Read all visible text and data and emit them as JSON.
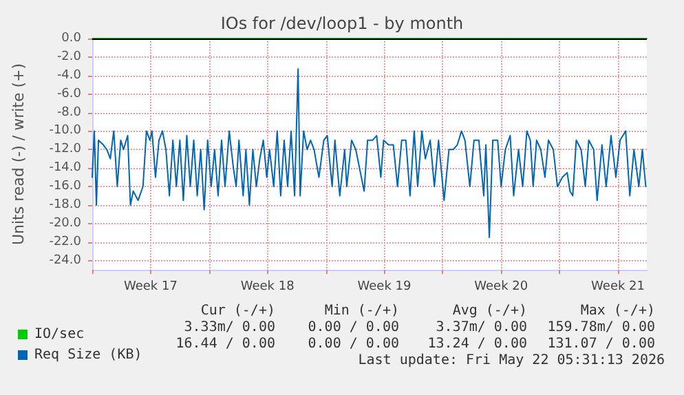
{
  "chart_data": {
    "type": "line",
    "title": "IOs for /dev/loop1 - by month",
    "ylabel": "Units read (-) / write (+)",
    "xlim": [
      "2026-04-19T00:00",
      "2026-05-22T05:31"
    ],
    "xticks": [
      {
        "value": "2026-04-19",
        "label": null
      },
      {
        "value": "2026-04-22T12:00",
        "label": "Week 17"
      },
      {
        "value": "2026-04-26",
        "label": null
      },
      {
        "value": "2026-04-29T12:00",
        "label": "Week 18"
      },
      {
        "value": "2026-05-03",
        "label": null
      },
      {
        "value": "2026-05-06T12:00",
        "label": "Week 19"
      },
      {
        "value": "2026-05-10",
        "label": null
      },
      {
        "value": "2026-05-13T12:00",
        "label": "Week 20"
      },
      {
        "value": "2026-05-17",
        "label": null
      },
      {
        "value": "2026-05-20T12:00",
        "label": "Week 21"
      }
    ],
    "ylim": [
      -25,
      0
    ],
    "yticks": [
      {
        "value": 0,
        "label": "0.0"
      },
      {
        "value": -2,
        "label": "-2.0"
      },
      {
        "value": -4,
        "label": "-4.0"
      },
      {
        "value": -6,
        "label": "-6.0"
      },
      {
        "value": -8,
        "label": "-8.0"
      },
      {
        "value": -10,
        "label": "-10.0"
      },
      {
        "value": -12,
        "label": "-12.0"
      },
      {
        "value": -14,
        "label": "-14.0"
      },
      {
        "value": -16,
        "label": "-16.0"
      },
      {
        "value": -18,
        "label": "-18.0"
      },
      {
        "value": -20,
        "label": "-20.0"
      },
      {
        "value": -22,
        "label": "-22.0"
      },
      {
        "value": -24,
        "label": "-24.0"
      }
    ],
    "grid": true,
    "legend": "bottom left",
    "marker": "none",
    "line_style": "solid",
    "ref_lines": [
      {
        "axis": "y",
        "value": 0,
        "label": null,
        "color": "#000000"
      }
    ],
    "series": [
      {
        "name": "IO/sec",
        "color": "#00cc00",
        "x": [
          "2026-04-19T00:00",
          "2026-05-22T05:31"
        ],
        "values": [
          0,
          0
        ]
      },
      {
        "name": "Req Size (KB)",
        "color": "#0066b3",
        "x": [
          "2026-04-19T00:00",
          "2026-04-19T03:00",
          "2026-04-19T06:00",
          "2026-04-19T09:00",
          "2026-04-19T16:00",
          "2026-04-19T21:00",
          "2026-04-20T02:00",
          "2026-04-20T07:00",
          "2026-04-20T12:00",
          "2026-04-20T17:00",
          "2026-04-20T21:00",
          "2026-04-21T03:00",
          "2026-04-21T07:00",
          "2026-04-21T11:00",
          "2026-04-21T18:00",
          "2026-04-22T01:00",
          "2026-04-22T06:00",
          "2026-04-22T11:00",
          "2026-04-22T14:00",
          "2026-04-22T19:00",
          "2026-04-23T00:00",
          "2026-04-23T05:00",
          "2026-04-23T10:00",
          "2026-04-23T15:00",
          "2026-04-23T20:00",
          "2026-04-24T01:00",
          "2026-04-24T06:00",
          "2026-04-24T11:00",
          "2026-04-24T16:00",
          "2026-04-24T21:00",
          "2026-04-25T02:00",
          "2026-04-25T07:00",
          "2026-04-25T12:00",
          "2026-04-25T17:00",
          "2026-04-25T22:00",
          "2026-04-26T03:00",
          "2026-04-26T08:00",
          "2026-04-26T13:00",
          "2026-04-26T18:00",
          "2026-04-26T23:00",
          "2026-04-27T05:00",
          "2026-04-27T11:00",
          "2026-04-27T15:00",
          "2026-04-27T19:00",
          "2026-04-28T01:00",
          "2026-04-28T05:00",
          "2026-04-28T10:00",
          "2026-04-28T15:00",
          "2026-04-28T20:00",
          "2026-04-29T01:00",
          "2026-04-29T06:00",
          "2026-04-29T11:00",
          "2026-04-29T15:00",
          "2026-04-29T21:00",
          "2026-04-30T02:00",
          "2026-04-30T07:00",
          "2026-04-30T12:00",
          "2026-04-30T17:00",
          "2026-04-30T22:00",
          "2026-05-01T03:00",
          "2026-05-01T08:00",
          "2026-05-01T11:00",
          "2026-05-01T16:00",
          "2026-05-01T21:00",
          "2026-05-02T02:00",
          "2026-05-02T07:00",
          "2026-05-02T14:00",
          "2026-05-02T21:00",
          "2026-05-03T02:00",
          "2026-05-03T09:00",
          "2026-05-03T13:00",
          "2026-05-03T20:00",
          "2026-05-04T03:00",
          "2026-05-04T06:00",
          "2026-05-04T13:00",
          "2026-05-04T19:00",
          "2026-05-05T03:00",
          "2026-05-05T07:00",
          "2026-05-05T12:00",
          "2026-05-05T19:00",
          "2026-05-06T01:00",
          "2026-05-06T07:00",
          "2026-05-06T11:00",
          "2026-05-06T18:00",
          "2026-05-07T01:00",
          "2026-05-07T07:00",
          "2026-05-07T13:00",
          "2026-05-07T19:00",
          "2026-05-08T01:00",
          "2026-05-08T07:00",
          "2026-05-08T12:00",
          "2026-05-08T18:00",
          "2026-05-08T23:00",
          "2026-05-09T06:00",
          "2026-05-09T12:00",
          "2026-05-09T18:00",
          "2026-05-10T02:00",
          "2026-05-10T09:00",
          "2026-05-10T15:00",
          "2026-05-10T21:00",
          "2026-05-11T03:00",
          "2026-05-11T08:00",
          "2026-05-11T15:00",
          "2026-05-11T21:00",
          "2026-05-12T04:00",
          "2026-05-12T11:00",
          "2026-05-12T14:00",
          "2026-05-12T19:00",
          "2026-05-13T00:00",
          "2026-05-13T07:00",
          "2026-05-13T12:00",
          "2026-05-13T18:00",
          "2026-05-14T01:00",
          "2026-05-14T06:00",
          "2026-05-14T13:00",
          "2026-05-14T19:00",
          "2026-05-15T01:00",
          "2026-05-15T06:00",
          "2026-05-15T10:00",
          "2026-05-15T15:00",
          "2026-05-15T21:00",
          "2026-05-16T03:00",
          "2026-05-16T08:00",
          "2026-05-16T15:00",
          "2026-05-16T21:00",
          "2026-05-17T04:00",
          "2026-05-17T11:00",
          "2026-05-17T15:00",
          "2026-05-17T19:00",
          "2026-05-18T00:00",
          "2026-05-18T07:00",
          "2026-05-18T13:00",
          "2026-05-18T18:00",
          "2026-05-19T01:00",
          "2026-05-19T06:00",
          "2026-05-19T13:00",
          "2026-05-19T19:00",
          "2026-05-20T02:00",
          "2026-05-20T09:00",
          "2026-05-20T15:00",
          "2026-05-20T23:00",
          "2026-05-21T05:00",
          "2026-05-21T11:00",
          "2026-05-21T18:00",
          "2026-05-21T23:00",
          "2026-05-22T04:00"
        ],
        "values": [
          -15,
          -10,
          -18,
          -11,
          -11.5,
          -12,
          -13,
          -10,
          -16,
          -11,
          -12,
          -10.5,
          -18,
          -16.5,
          -17.5,
          -16,
          -10,
          -11,
          -10,
          -15,
          -11,
          -10,
          -12,
          -17,
          -11,
          -16,
          -11,
          -17.5,
          -10.5,
          -16,
          -11,
          -17,
          -12,
          -18.5,
          -11,
          -16,
          -12,
          -17,
          -11,
          -16,
          -10,
          -14,
          -16,
          -11,
          -17,
          -12,
          -18,
          -12,
          -16,
          -13,
          -11,
          -15,
          -12,
          -16,
          -10,
          -17,
          -11,
          -16,
          -10,
          -17,
          -3.3,
          -17,
          -10,
          -12,
          -11,
          -12,
          -15,
          -11,
          -10.5,
          -16,
          -11,
          -17,
          -12,
          -16,
          -11,
          -12,
          -15,
          -16.5,
          -11,
          -11,
          -10.5,
          -15,
          -11,
          -11.5,
          -11.5,
          -16,
          -11,
          -11,
          -17,
          -10,
          -16,
          -10,
          -13,
          -11,
          -16,
          -11,
          -17.5,
          -12,
          -12,
          -11.5,
          -10,
          -11,
          -16,
          -11,
          -11,
          -17,
          -11.5,
          -21.5,
          -11,
          -11,
          -16,
          -12,
          -10.5,
          -17,
          -12,
          -16,
          -10,
          -11,
          -16,
          -11,
          -12,
          -15,
          -11,
          -12,
          -16,
          -15,
          -14.5,
          -16.5,
          -17,
          -11,
          -12,
          -16,
          -11,
          -12,
          -17.5,
          -11.5,
          -16,
          -10.5,
          -15,
          -11,
          -10,
          -17,
          -12,
          -16,
          -12,
          -16
        ]
      }
    ],
    "annotations": [
      "Cur (-/+)",
      "Min (-/+)",
      "Avg (-/+)",
      "Max (-/+)",
      "3.33m/ 0.00",
      "0.00 / 0.00",
      "3.37m/ 0.00",
      "159.78m/ 0.00",
      "16.44 / 0.00",
      "0.00 / 0.00",
      "13.24 / 0.00",
      "131.07 / 0.00",
      "Last update: Fri May 22 05:31:13 2026"
    ]
  }
}
